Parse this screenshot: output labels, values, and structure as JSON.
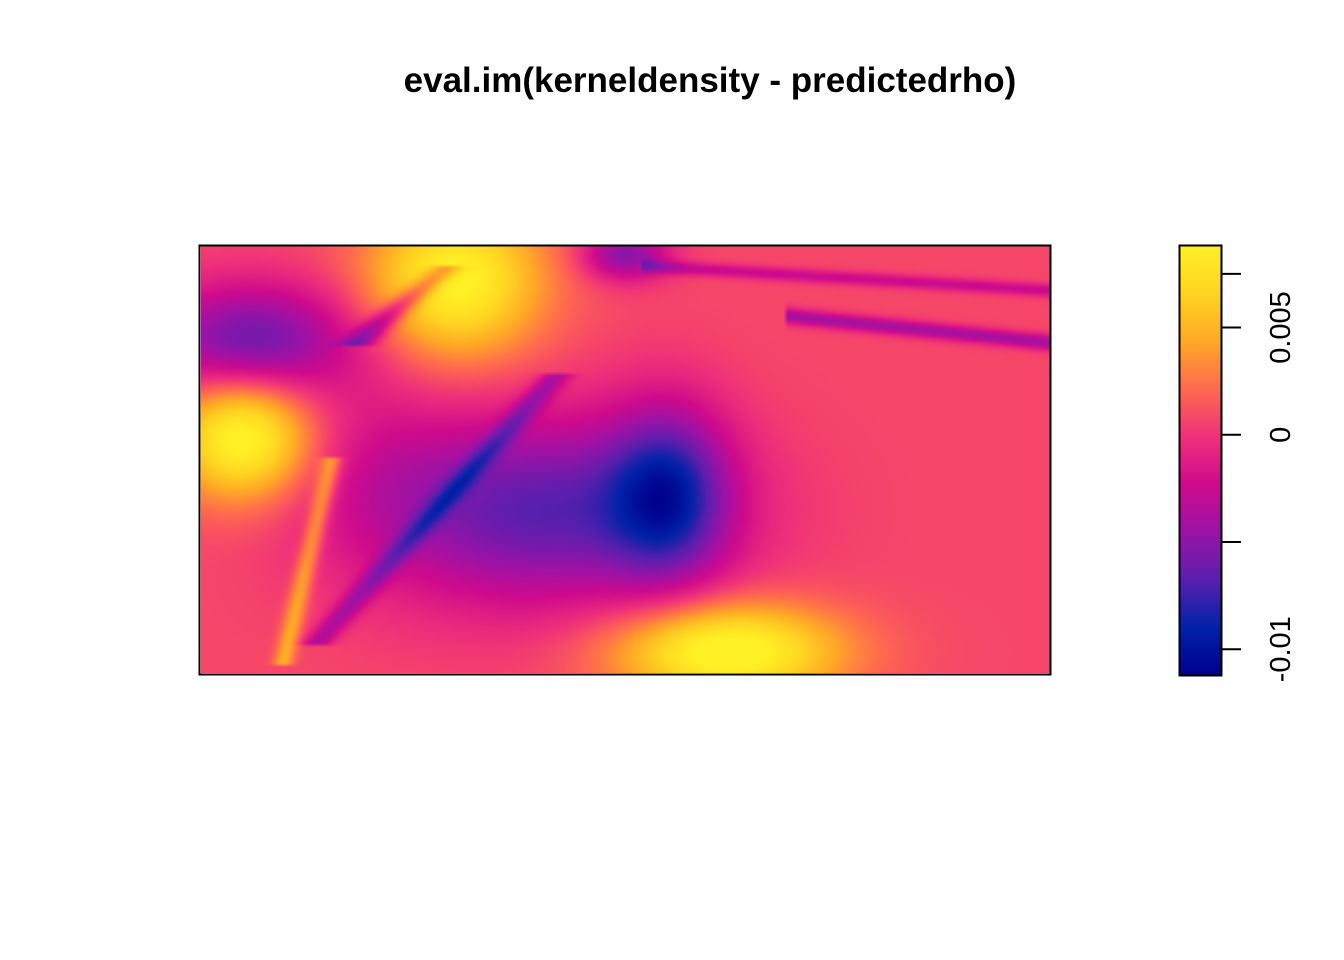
{
  "chart_data": {
    "type": "heatmap",
    "title": "eval.im(kerneldensity - predictedrho)",
    "xlabel": "",
    "ylabel": "",
    "colorbar": {
      "zlim": [
        -0.0112,
        0.0088
      ],
      "ticks": [
        {
          "value": -0.01,
          "label": "-0.01"
        },
        {
          "value": -0.005,
          "label": ""
        },
        {
          "value": 0,
          "label": "0"
        },
        {
          "value": 0.005,
          "label": "0.005"
        },
        {
          "value": 0.0075,
          "label": ""
        }
      ],
      "palette": [
        "#00008b",
        "#0022a8",
        "#5a1fae",
        "#9a13a7",
        "#cf0a8c",
        "#f0307a",
        "#ff6a4e",
        "#ffa826",
        "#ffd322",
        "#ffef24"
      ]
    },
    "field": {
      "base": 0.0008,
      "features": [
        {
          "kind": "blob",
          "x": 0.05,
          "y": 0.55,
          "sx": 0.08,
          "sy": 0.14,
          "amp": 0.009
        },
        {
          "kind": "blob",
          "x": 0.3,
          "y": 0.92,
          "sx": 0.1,
          "sy": 0.18,
          "amp": 0.0085
        },
        {
          "kind": "blob",
          "x": 0.62,
          "y": 0.05,
          "sx": 0.13,
          "sy": 0.11,
          "amp": 0.0095
        },
        {
          "kind": "blob",
          "x": 0.06,
          "y": 0.78,
          "sx": 0.12,
          "sy": 0.13,
          "amp": -0.007
        },
        {
          "kind": "blob",
          "x": 0.4,
          "y": 0.38,
          "sx": 0.2,
          "sy": 0.22,
          "amp": -0.0075
        },
        {
          "kind": "blob",
          "x": 0.55,
          "y": 0.42,
          "sx": 0.07,
          "sy": 0.2,
          "amp": -0.0075
        },
        {
          "kind": "blob",
          "x": 0.5,
          "y": 0.98,
          "sx": 0.05,
          "sy": 0.06,
          "amp": -0.006
        },
        {
          "kind": "blob",
          "x": 0.2,
          "y": 0.5,
          "sx": 0.1,
          "sy": 0.25,
          "amp": -0.0015
        },
        {
          "kind": "ridge",
          "axis": "x",
          "t0": 0.72,
          "t1": 1.0,
          "a": 0.83,
          "b": -0.2,
          "w": 0.018,
          "amp": -0.005
        },
        {
          "kind": "ridge",
          "axis": "x",
          "t0": 0.55,
          "t1": 1.0,
          "a": 0.95,
          "b": -0.12,
          "w": 0.015,
          "amp": -0.0035
        },
        {
          "kind": "ridge",
          "axis": "y",
          "t0": 0.8,
          "t1": 0.95,
          "a": 0.2,
          "b": 0.6,
          "w": 0.02,
          "amp": -0.005
        },
        {
          "kind": "ridge",
          "axis": "y",
          "t0": 0.1,
          "t1": 0.7,
          "a": 0.15,
          "b": 0.45,
          "w": 0.018,
          "amp": -0.004
        },
        {
          "kind": "ridge",
          "axis": "y",
          "t0": 0.05,
          "t1": 0.5,
          "a": 0.1,
          "b": 0.12,
          "w": 0.012,
          "amp": 0.004
        }
      ]
    }
  }
}
